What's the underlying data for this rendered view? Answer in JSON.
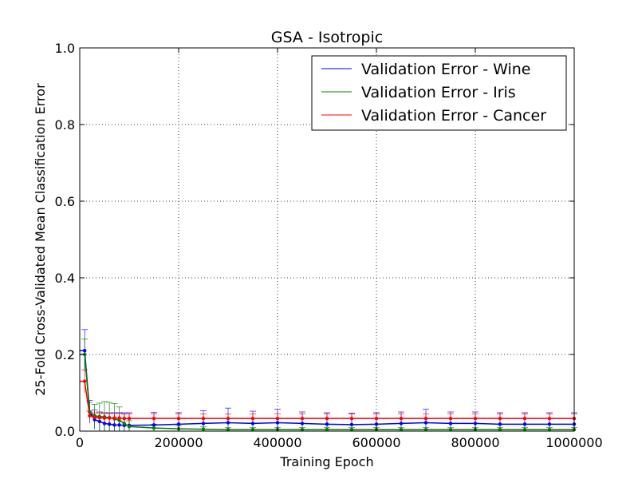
{
  "chart_data": {
    "type": "line",
    "title": "GSA - Isotropic",
    "xlabel": "Training Epoch",
    "ylabel": "25-Fold Cross-Validated Mean Classification Error",
    "xlim": [
      0,
      1000000
    ],
    "ylim": [
      0.0,
      1.0
    ],
    "xticks": [
      "0",
      "200000",
      "400000",
      "600000",
      "800000",
      "1000000"
    ],
    "yticks": [
      "0.0",
      "0.2",
      "0.4",
      "0.6",
      "0.8",
      "1.0"
    ],
    "grid": true,
    "legend_position": "top-right",
    "series": [
      {
        "name": "Validation Error - Wine",
        "color": "#0000ff",
        "x": [
          10000,
          20000,
          30000,
          40000,
          50000,
          60000,
          70000,
          80000,
          90000,
          100000,
          150000,
          200000,
          250000,
          300000,
          350000,
          400000,
          450000,
          500000,
          550000,
          600000,
          650000,
          700000,
          750000,
          800000,
          850000,
          900000,
          950000,
          1000000
        ],
        "y": [
          0.21,
          0.05,
          0.03,
          0.025,
          0.02,
          0.018,
          0.016,
          0.016,
          0.015,
          0.015,
          0.016,
          0.018,
          0.02,
          0.022,
          0.02,
          0.022,
          0.02,
          0.018,
          0.017,
          0.018,
          0.02,
          0.022,
          0.02,
          0.02,
          0.018,
          0.018,
          0.018,
          0.018
        ],
        "err": [
          0.055,
          0.03,
          0.025,
          0.025,
          0.028,
          0.03,
          0.032,
          0.032,
          0.033,
          0.033,
          0.033,
          0.03,
          0.033,
          0.038,
          0.032,
          0.035,
          0.03,
          0.03,
          0.03,
          0.03,
          0.03,
          0.035,
          0.03,
          0.03,
          0.03,
          0.03,
          0.03,
          0.03
        ]
      },
      {
        "name": "Validation Error - Iris",
        "color": "#008000",
        "x": [
          10000,
          20000,
          30000,
          40000,
          50000,
          60000,
          70000,
          80000,
          90000,
          100000,
          150000,
          200000,
          250000,
          300000,
          350000,
          400000,
          450000,
          500000,
          550000,
          600000,
          650000,
          700000,
          750000,
          800000,
          850000,
          900000,
          950000,
          1000000
        ],
        "y": [
          0.2,
          0.05,
          0.04,
          0.038,
          0.037,
          0.035,
          0.032,
          0.028,
          0.02,
          0.012,
          0.008,
          0.006,
          0.005,
          0.004,
          0.004,
          0.004,
          0.004,
          0.004,
          0.004,
          0.004,
          0.004,
          0.004,
          0.004,
          0.004,
          0.004,
          0.004,
          0.004,
          0.004
        ],
        "err": [
          0.04,
          0.025,
          0.03,
          0.035,
          0.04,
          0.04,
          0.04,
          0.035,
          0.025,
          0.015,
          0.01,
          0.008,
          0.006,
          0.005,
          0.005,
          0.005,
          0.005,
          0.005,
          0.005,
          0.005,
          0.005,
          0.005,
          0.005,
          0.005,
          0.005,
          0.005,
          0.005,
          0.005
        ]
      },
      {
        "name": "Validation Error - Cancer",
        "color": "#ff0000",
        "x": [
          10000,
          20000,
          30000,
          40000,
          50000,
          60000,
          70000,
          80000,
          90000,
          100000,
          150000,
          200000,
          250000,
          300000,
          350000,
          400000,
          450000,
          500000,
          550000,
          600000,
          650000,
          700000,
          750000,
          800000,
          850000,
          900000,
          950000,
          1000000
        ],
        "y": [
          0.13,
          0.04,
          0.036,
          0.035,
          0.034,
          0.034,
          0.034,
          0.034,
          0.033,
          0.033,
          0.033,
          0.033,
          0.033,
          0.033,
          0.033,
          0.033,
          0.033,
          0.033,
          0.033,
          0.033,
          0.033,
          0.033,
          0.033,
          0.033,
          0.033,
          0.033,
          0.033,
          0.033
        ],
        "err": [
          0.03,
          0.012,
          0.012,
          0.012,
          0.012,
          0.012,
          0.012,
          0.012,
          0.012,
          0.012,
          0.012,
          0.012,
          0.012,
          0.012,
          0.012,
          0.012,
          0.012,
          0.012,
          0.012,
          0.012,
          0.012,
          0.012,
          0.012,
          0.012,
          0.012,
          0.012,
          0.012,
          0.012
        ]
      }
    ]
  }
}
